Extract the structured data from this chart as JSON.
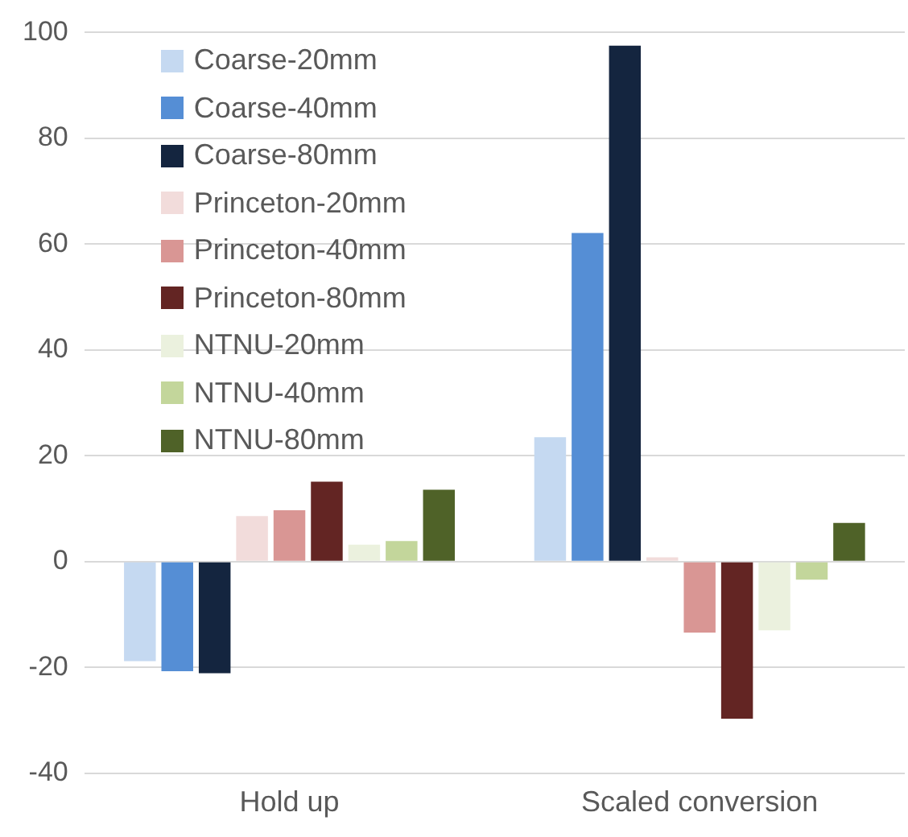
{
  "chart_data": {
    "type": "bar",
    "categories": [
      "Hold up",
      "Scaled conversion"
    ],
    "series": [
      {
        "name": "Coarse-20mm",
        "color": "#c5d9f1",
        "values": [
          -18.8,
          23.5
        ]
      },
      {
        "name": "Coarse-40mm",
        "color": "#558ed5",
        "values": [
          -20.7,
          62.1
        ]
      },
      {
        "name": "Coarse-80mm",
        "color": "#14253f",
        "values": [
          -21.1,
          97.5
        ]
      },
      {
        "name": "Princeton-20mm",
        "color": "#f2dcdb",
        "values": [
          8.6,
          0.8
        ]
      },
      {
        "name": "Princeton-40mm",
        "color": "#d99694",
        "values": [
          9.7,
          -13.4
        ]
      },
      {
        "name": "Princeton-80mm",
        "color": "#632523",
        "values": [
          15.1,
          -29.7
        ]
      },
      {
        "name": "NTNU-20mm",
        "color": "#ebf1de",
        "values": [
          3.2,
          -13
        ]
      },
      {
        "name": "NTNU-40mm",
        "color": "#c3d69b",
        "values": [
          3.9,
          -3.4
        ]
      },
      {
        "name": "NTNU-80mm",
        "color": "#4f6228",
        "values": [
          13.6,
          7.3
        ]
      }
    ],
    "ylim": [
      -40,
      100
    ],
    "yticks": [
      -40,
      -20,
      0,
      20,
      40,
      60,
      80,
      100
    ],
    "grid": "y",
    "legend": "top left"
  }
}
